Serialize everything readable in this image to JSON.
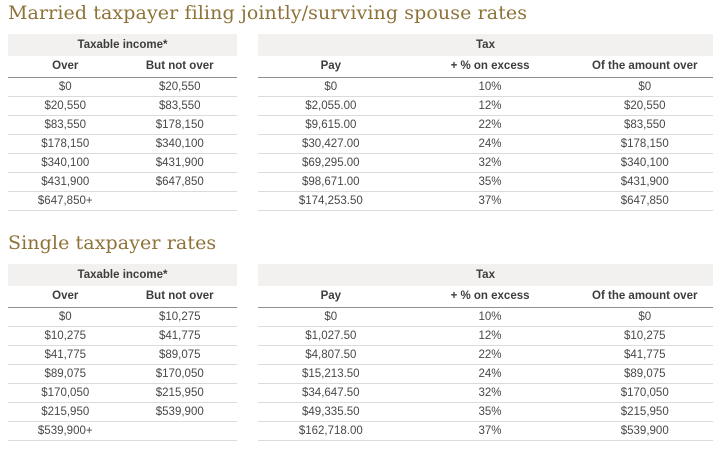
{
  "theme": {
    "title_color": "#8e7339",
    "group_header_bg": "#f2f1ef",
    "header_text_color": "#3d3d3d",
    "body_text_color": "#484848",
    "row_border_color": "#dbdbd9",
    "subheader_border_color": "#909090"
  },
  "sections": [
    {
      "title": "Married taxpayer filing jointly/surviving spouse rates",
      "income_group_header": "Taxable income*",
      "tax_group_header": "Tax",
      "columns": {
        "over": "Over",
        "but_not_over": "But not over",
        "pay": "Pay",
        "pct_on_excess": "+ % on excess",
        "of_amount_over": "Of the amount over"
      },
      "rows": [
        {
          "over": "$0",
          "but_not_over": "$20,550",
          "pay": "$0",
          "pct_on_excess": "10%",
          "of_amount_over": "$0"
        },
        {
          "over": "$20,550",
          "but_not_over": "$83,550",
          "pay": "$2,055.00",
          "pct_on_excess": "12%",
          "of_amount_over": "$20,550"
        },
        {
          "over": "$83,550",
          "but_not_over": "$178,150",
          "pay": "$9,615.00",
          "pct_on_excess": "22%",
          "of_amount_over": "$83,550"
        },
        {
          "over": "$178,150",
          "but_not_over": "$340,100",
          "pay": "$30,427.00",
          "pct_on_excess": "24%",
          "of_amount_over": "$178,150"
        },
        {
          "over": "$340,100",
          "but_not_over": "$431,900",
          "pay": "$69,295.00",
          "pct_on_excess": "32%",
          "of_amount_over": "$340,100"
        },
        {
          "over": "$431,900",
          "but_not_over": "$647,850",
          "pay": "$98,671.00",
          "pct_on_excess": "35%",
          "of_amount_over": "$431,900"
        },
        {
          "over": "$647,850+",
          "but_not_over": "",
          "pay": "$174,253.50",
          "pct_on_excess": "37%",
          "of_amount_over": "$647,850"
        }
      ]
    },
    {
      "title": "Single taxpayer rates",
      "income_group_header": "Taxable income*",
      "tax_group_header": "Tax",
      "columns": {
        "over": "Over",
        "but_not_over": "But not over",
        "pay": "Pay",
        "pct_on_excess": "+ % on excess",
        "of_amount_over": "Of the amount over"
      },
      "rows": [
        {
          "over": "$0",
          "but_not_over": "$10,275",
          "pay": "$0",
          "pct_on_excess": "10%",
          "of_amount_over": "$0"
        },
        {
          "over": "$10,275",
          "but_not_over": "$41,775",
          "pay": "$1,027.50",
          "pct_on_excess": "12%",
          "of_amount_over": "$10,275"
        },
        {
          "over": "$41,775",
          "but_not_over": "$89,075",
          "pay": "$4,807.50",
          "pct_on_excess": "22%",
          "of_amount_over": "$41,775"
        },
        {
          "over": "$89,075",
          "but_not_over": "$170,050",
          "pay": "$15,213.50",
          "pct_on_excess": "24%",
          "of_amount_over": "$89,075"
        },
        {
          "over": "$170,050",
          "but_not_over": "$215,950",
          "pay": "$34,647.50",
          "pct_on_excess": "32%",
          "of_amount_over": "$170,050"
        },
        {
          "over": "$215,950",
          "but_not_over": "$539,900",
          "pay": "$49,335.50",
          "pct_on_excess": "35%",
          "of_amount_over": "$215,950"
        },
        {
          "over": "$539,900+",
          "but_not_over": "",
          "pay": "$162,718.00",
          "pct_on_excess": "37%",
          "of_amount_over": "$539,900"
        }
      ]
    }
  ]
}
